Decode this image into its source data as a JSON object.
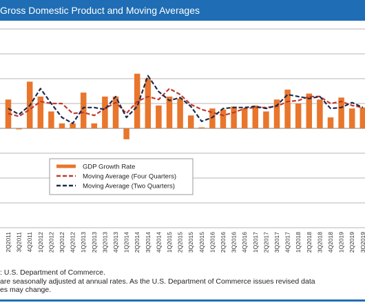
{
  "header": {
    "title": "Gross Domestic Product and Moving Averages",
    "bar_color": "#1f6db4"
  },
  "chart_data": {
    "type": "bar",
    "title": "Gross Domestic Product and Moving Averages",
    "categories": [
      "2Q2011",
      "3Q2011",
      "4Q2011",
      "1Q2012",
      "2Q2012",
      "3Q2012",
      "4Q2012",
      "1Q2013",
      "2Q2013",
      "3Q2013",
      "4Q2013",
      "1Q2014",
      "2Q2014",
      "3Q2014",
      "4Q2014",
      "1Q2015",
      "2Q2015",
      "3Q2015",
      "4Q2015",
      "1Q2016",
      "2Q2016",
      "3Q2016",
      "4Q2016",
      "1Q2017",
      "2Q2017",
      "3Q2017",
      "4Q2017",
      "1Q2018",
      "2Q2018",
      "3Q2018",
      "4Q2018",
      "1Q2019",
      "2Q2019",
      "3Q2019"
    ],
    "ylim": [
      -10,
      10
    ],
    "grid": true,
    "legend_position": "bottom-center",
    "series": [
      {
        "name": "GDP Growth Rate",
        "kind": "bar",
        "color": "#e8762c",
        "values": [
          2.9,
          -0.1,
          4.7,
          3.2,
          1.7,
          0.5,
          0.5,
          3.6,
          0.5,
          3.2,
          3.2,
          -1.1,
          5.5,
          5.0,
          2.3,
          3.2,
          3.0,
          1.3,
          0.1,
          2.0,
          1.9,
          2.2,
          2.0,
          2.3,
          1.7,
          2.9,
          3.9,
          2.5,
          3.5,
          2.9,
          1.1,
          3.1,
          2.0,
          2.1
        ]
      },
      {
        "name": "Moving Average (Four Quarters)",
        "kind": "line",
        "style": "dashed",
        "color": "#c0392b",
        "values": [
          1.5,
          1.2,
          1.9,
          2.7,
          2.5,
          2.5,
          1.5,
          1.6,
          1.3,
          2.0,
          2.6,
          1.5,
          2.7,
          3.2,
          2.9,
          4.0,
          3.4,
          2.4,
          1.9,
          1.6,
          1.3,
          1.6,
          2.0,
          2.1,
          2.1,
          2.2,
          2.7,
          2.8,
          3.2,
          3.2,
          2.5,
          2.7,
          2.3,
          2.1
        ]
      },
      {
        "name": "Moving Average (Two Quarters)",
        "kind": "line",
        "style": "dashed",
        "color": "#1b2a4e",
        "values": [
          2.0,
          1.4,
          2.3,
          4.0,
          2.5,
          1.1,
          0.5,
          2.1,
          2.1,
          1.9,
          3.2,
          1.1,
          2.2,
          5.3,
          3.7,
          2.8,
          3.1,
          2.2,
          0.7,
          1.1,
          2.0,
          2.1,
          2.1,
          2.2,
          2.0,
          2.3,
          3.4,
          3.2,
          3.0,
          3.2,
          2.0,
          2.1,
          2.6,
          2.1
        ]
      }
    ]
  },
  "footnotes": {
    "source": ": U.S. Department of Commerce.",
    "note_line1": "are seasonally adjusted at annual rates. As the U.S. Department of Commerce issues revised data",
    "note_line2": "es may change."
  }
}
